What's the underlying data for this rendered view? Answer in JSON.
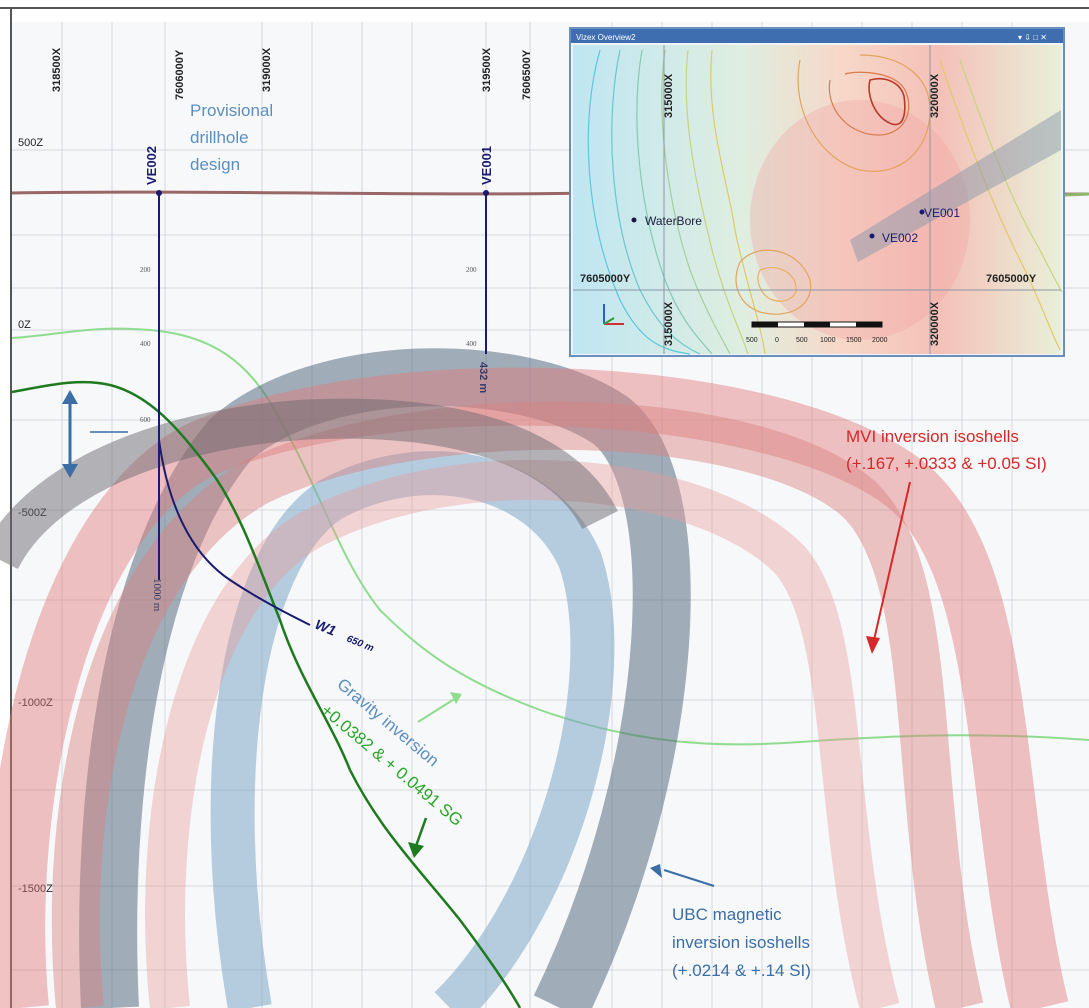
{
  "section": {
    "easting_ticks": [
      "318500X",
      "319000X",
      "319500X"
    ],
    "northing_ticks": [
      "7606000Y",
      "7606500Y"
    ],
    "elevation_ticks": [
      "500Z",
      "0Z",
      "-500Z",
      "-1000Z",
      "-1500Z"
    ],
    "drillholes": [
      {
        "name": "VE002",
        "depth_marks": [
          "200",
          "400",
          "600"
        ],
        "end_label": "1000 m"
      },
      {
        "name": "VE001",
        "depth_marks": [
          "200",
          "400"
        ],
        "end_label": "432 m"
      }
    ],
    "wedge": {
      "name": "W1",
      "length_label": "650 m"
    }
  },
  "annotations": {
    "provisional_design": [
      "Provisional",
      "drillhole",
      "design"
    ],
    "mvi": [
      "MVI inversion isoshells",
      "(+.167, +.0333 & +0.05 SI)"
    ],
    "gravity_title": "Gravity inversion",
    "gravity_values": "+0.0382 & + 0.0491 SG",
    "ubc": [
      "UBC magnetic",
      "inversion isoshells",
      "(+.0214 & +.14 SI)"
    ]
  },
  "colors": {
    "mvi": "#d62828",
    "gravity_dark": "#1e7a1e",
    "gravity_light": "#8fdc8f",
    "ubc_text": "#3a6ea5",
    "drillhole": "#1a1a6e",
    "topography": "#8a4e4e"
  },
  "inset": {
    "title": "Vizex Overview2",
    "window_controls": "▾ ⇩ □ ✕",
    "easting_labels": [
      "315000X",
      "320000X"
    ],
    "northing_labels": [
      "7605000Y"
    ],
    "points": [
      "WaterBore",
      "VE001",
      "VE002"
    ],
    "scale_labels": [
      "500",
      "0",
      "500",
      "1000",
      "1500",
      "2000"
    ]
  }
}
